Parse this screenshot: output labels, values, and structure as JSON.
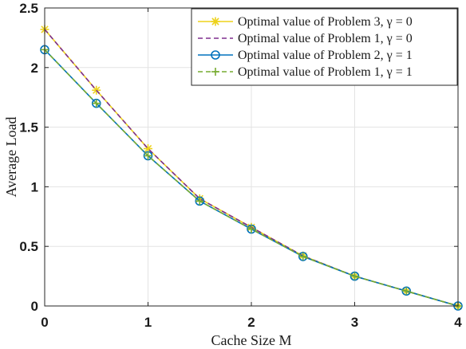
{
  "chart_data": {
    "type": "line",
    "title": "",
    "xlabel": "Cache Size M",
    "ylabel": "Average Load",
    "xlim": [
      0,
      4
    ],
    "ylim": [
      0,
      2.5
    ],
    "xticks": [
      "0",
      "1",
      "2",
      "3",
      "4"
    ],
    "yticks": [
      "0",
      "0.5",
      "1",
      "1.5",
      "2",
      "2.5"
    ],
    "grid": true,
    "legend_position": "top-right",
    "x": [
      0,
      0.5,
      1,
      1.5,
      2,
      2.5,
      3,
      3.5,
      4
    ],
    "series": [
      {
        "name": "Optimal value of Problem 3, γ = 0",
        "values": [
          2.32,
          1.81,
          1.32,
          0.9,
          0.66,
          0.42,
          0.25,
          0.125,
          0.0
        ],
        "color": "#EDD21A",
        "line_style": "solid",
        "marker": "asterisk"
      },
      {
        "name": "Optimal value of Problem 1, γ = 0",
        "values": [
          2.32,
          1.81,
          1.32,
          0.9,
          0.66,
          0.42,
          0.25,
          0.125,
          0.0
        ],
        "color": "#7E2F8E",
        "line_style": "dashed",
        "marker": "none"
      },
      {
        "name": "Optimal value of Problem 2, γ = 1",
        "values": [
          2.15,
          1.7,
          1.26,
          0.88,
          0.645,
          0.415,
          0.25,
          0.125,
          0.0
        ],
        "color": "#0072BD",
        "line_style": "solid",
        "marker": "circle"
      },
      {
        "name": "Optimal value of Problem 1, γ = 1",
        "values": [
          2.15,
          1.7,
          1.26,
          0.88,
          0.645,
          0.415,
          0.25,
          0.125,
          0.0
        ],
        "color": "#77AC30",
        "line_style": "dashed",
        "marker": "plus"
      }
    ]
  }
}
